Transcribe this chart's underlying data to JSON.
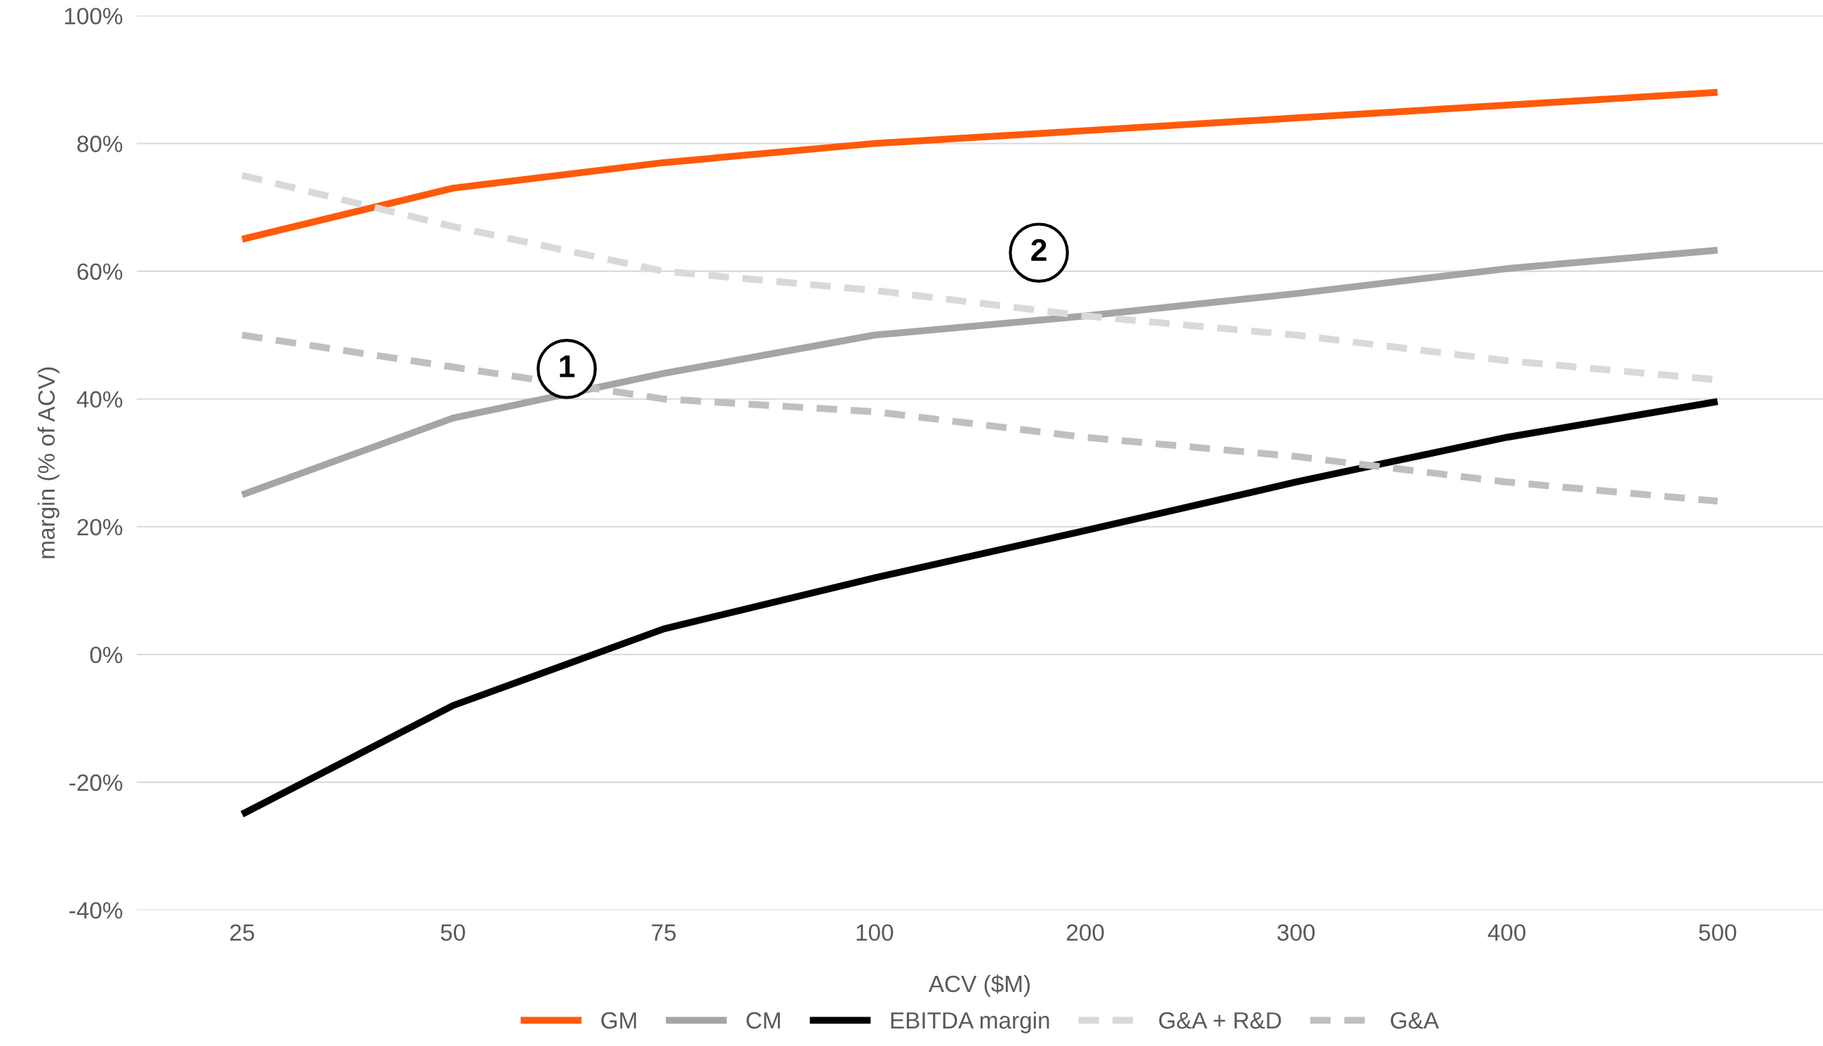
{
  "chart_data": {
    "type": "line",
    "xlabel": "ACV ($M)",
    "ylabel": "margin (% of ACV)",
    "categories": [
      "25",
      "50",
      "75",
      "100",
      "200",
      "300",
      "400",
      "500"
    ],
    "series": [
      {
        "name": "GM",
        "color": "#ff5a0a",
        "values": [
          65,
          73,
          77,
          80,
          82,
          84,
          86,
          88
        ]
      },
      {
        "name": "CM",
        "color": "#a5a5a5",
        "values": [
          25,
          37,
          44,
          50,
          53,
          56.5,
          60.4,
          63.3
        ]
      },
      {
        "name": "EBITDA margin",
        "color": "#000000",
        "values": [
          -25,
          -8,
          4,
          12,
          19.4,
          27,
          34,
          39.6
        ]
      },
      {
        "name": "G&A + R&D",
        "color": "#d9d9d9",
        "line_style": "dashed",
        "values": [
          75,
          67,
          60,
          57,
          53,
          50,
          46,
          43
        ]
      },
      {
        "name": "G&A",
        "color": "#bfbfbf",
        "line_style": "dashed",
        "values": [
          50,
          45,
          40,
          38,
          34,
          31,
          27,
          24
        ]
      }
    ],
    "ylim": [
      -40,
      100
    ],
    "yticks": [
      {
        "value": -40,
        "label": "-40%"
      },
      {
        "value": -20,
        "label": "-20%"
      },
      {
        "value": 0,
        "label": "0%"
      },
      {
        "value": 20,
        "label": "20%"
      },
      {
        "value": 40,
        "label": "40%"
      },
      {
        "value": 60,
        "label": "60%"
      },
      {
        "value": 80,
        "label": "80%"
      },
      {
        "value": 100,
        "label": "100%"
      }
    ],
    "grid": "y",
    "legend": "bottom",
    "line_style": "solid",
    "marker": "none",
    "annotations": [
      "1",
      "2"
    ]
  }
}
